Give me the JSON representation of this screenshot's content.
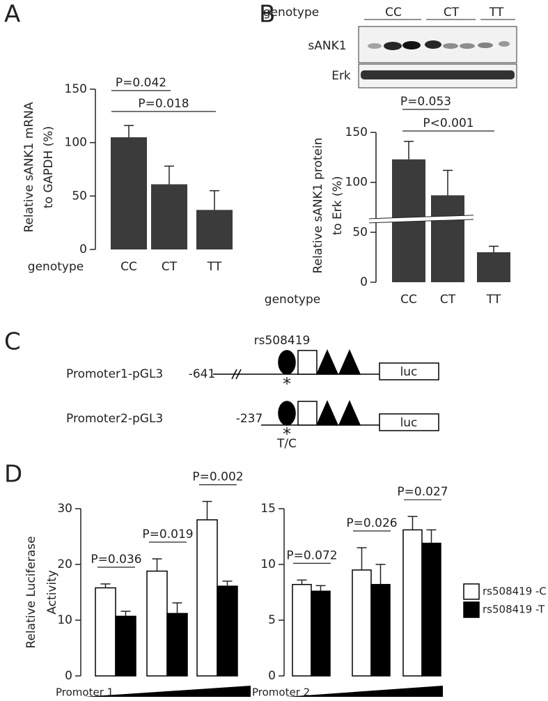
{
  "chart_data": [
    {
      "panel": "A",
      "type": "bar",
      "xlabel": "genotype",
      "categories": [
        "CC",
        "CT",
        "TT"
      ],
      "values": [
        105,
        61,
        37
      ],
      "errors": [
        11,
        17,
        18
      ],
      "color": "#3b3b3b",
      "ylim": [
        0,
        150
      ],
      "yticks": [
        0,
        50,
        100,
        150
      ],
      "ylabel": [
        "Relative sANK1 mRNA",
        "to GAPDH (%)"
      ],
      "annotations": [
        "P=0.042",
        "P=0.018"
      ]
    },
    {
      "panel": "B",
      "type": "bar",
      "blot": {
        "xlabel": "genotype",
        "lanes": [
          "CC",
          "CT",
          "TT"
        ],
        "rows": [
          "sANK1",
          "Erk"
        ]
      },
      "xlabel": "genotype",
      "categories": [
        "CC",
        "CT",
        "TT"
      ],
      "values": [
        123,
        87,
        30
      ],
      "errors": [
        18,
        25,
        6
      ],
      "color": "#3b3b3b",
      "axis_break": true,
      "ylim": [
        0,
        150
      ],
      "yticks": [
        0,
        50,
        100,
        150
      ],
      "ylabel": [
        "Relative sANK1 protein",
        "to Erk (%)"
      ],
      "annotations": [
        "P=0.053",
        "P<0.001"
      ]
    },
    {
      "panel": "D",
      "type": "grouped_bar",
      "xlabel": "Promoter 1",
      "categories": [
        null,
        null,
        null
      ],
      "series": [
        {
          "color": "#ffffff",
          "values": [
            15.8,
            18.8,
            28
          ],
          "errors": [
            0.7,
            2.2,
            3.3
          ]
        },
        {
          "color": "#000000",
          "values": [
            10.7,
            11.2,
            16.1
          ],
          "errors": [
            0.9,
            1.9,
            0.9
          ]
        }
      ],
      "ylim": [
        0,
        30
      ],
      "yticks": [
        0,
        10,
        20,
        30
      ],
      "ylabel": [
        "Relative Luciferase",
        "Activity"
      ],
      "annotations": [
        "P=0.036",
        "P=0.019",
        "P=0.002"
      ]
    },
    {
      "type": "grouped_bar",
      "xlabel": "Promoter 2",
      "categories": [
        null,
        null,
        null
      ],
      "series": [
        {
          "name": "rs508419 -C",
          "color": "#ffffff",
          "values": [
            8.2,
            9.5,
            13.1
          ],
          "errors": [
            0.4,
            2.0,
            1.2
          ]
        },
        {
          "name": "rs508419 -T",
          "color": "#000000",
          "values": [
            7.6,
            8.2,
            11.9
          ],
          "errors": [
            0.5,
            1.8,
            1.2
          ]
        }
      ],
      "ylim": [
        0,
        15
      ],
      "yticks": [
        0,
        5,
        10,
        15
      ],
      "legend": "right",
      "annotations": [
        "P=0.072",
        "P=0.026",
        "P=0.027"
      ]
    }
  ],
  "diagram": {
    "panel": "C",
    "snp": "rs508419",
    "constructs": [
      {
        "name": "Promoter1-pGL3",
        "start": "-641",
        "reporter": "luc",
        "marker": "*"
      },
      {
        "name": "Promoter2-pGL3",
        "start": "-237",
        "reporter": "luc",
        "marker": "*",
        "allele": "T/C"
      }
    ]
  }
}
